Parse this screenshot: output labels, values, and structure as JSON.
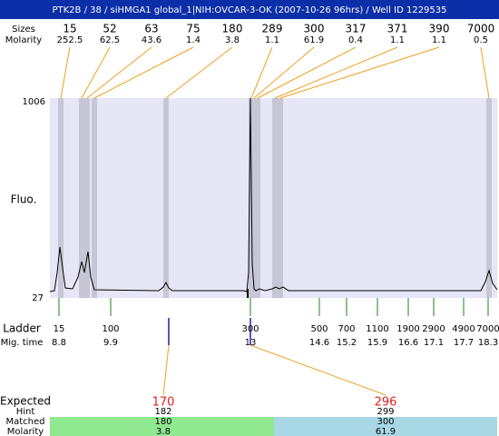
{
  "header": {
    "title": "PTK2B / 38 / siHMGA1 global_1|NIH:OVCAR-3-OK (2007-10-26 96hrs) / Well ID 1229535"
  },
  "peaks": {
    "size_label": "Sizes",
    "molarity_label": "Molarity",
    "items": [
      {
        "size": 15,
        "molarity": 252.5
      },
      {
        "size": 52,
        "molarity": 62.5
      },
      {
        "size": 63,
        "molarity": 43.6
      },
      {
        "size": 75,
        "molarity": 1.4
      },
      {
        "size": 180,
        "molarity": 3.8
      },
      {
        "size": 289,
        "molarity": 1.1
      },
      {
        "size": 300,
        "molarity": 61.9
      },
      {
        "size": 317,
        "molarity": 0.4
      },
      {
        "size": 371,
        "molarity": 1.1
      },
      {
        "size": 390,
        "molarity": 1.1
      },
      {
        "size": 7000,
        "molarity": 0.5
      }
    ]
  },
  "plot": {
    "y_top_label": 1006,
    "y_bottom_label": 27,
    "axis_label": "Fluo."
  },
  "ladder": {
    "size_label": "Ladder",
    "time_label": "Mig. time",
    "items": [
      {
        "size": 15,
        "mig_time": 8.8
      },
      {
        "size": 100,
        "mig_time": 9.9
      },
      {
        "size": 300,
        "mig_time": 13
      },
      {
        "size": 500,
        "mig_time": 14.6
      },
      {
        "size": 700,
        "mig_time": 15.2
      },
      {
        "size": 1100,
        "mig_time": 15.9
      },
      {
        "size": 1900,
        "mig_time": 16.6
      },
      {
        "size": 2900,
        "mig_time": 17.1
      },
      {
        "size": 4900,
        "mig_time": 17.7
      },
      {
        "size": 7000,
        "mig_time": 18.3
      }
    ]
  },
  "expected": {
    "expected_label": "Expected",
    "hint_label": "Hint",
    "matched_label": "Matched",
    "molarity_label": "Molarity",
    "items": [
      {
        "expected": 170,
        "hint": 182,
        "matched": 180,
        "molarity": 3.8
      },
      {
        "expected": 296,
        "hint": 299,
        "matched": 300,
        "molarity": 61.9
      }
    ]
  }
}
